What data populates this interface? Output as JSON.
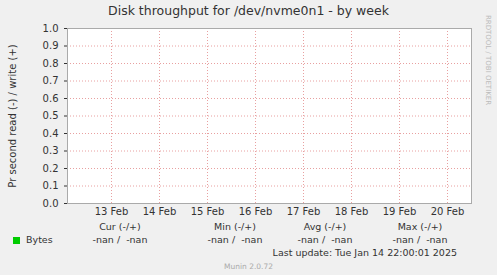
{
  "chart_data": {
    "type": "line",
    "title": "Disk throughput for /dev/nvme0n1 - by week",
    "y_label": "Pr second read (-) / write (+)",
    "categories": [
      "13 Feb",
      "14 Feb",
      "15 Feb",
      "16 Feb",
      "17 Feb",
      "18 Feb",
      "19 Feb",
      "20 Feb"
    ],
    "series": [
      {
        "name": "Bytes",
        "color": "#00cc00",
        "values": [
          null,
          null,
          null,
          null,
          null,
          null,
          null,
          null
        ]
      }
    ],
    "ylim": [
      0,
      1
    ],
    "yticks": [
      {
        "value": 0,
        "label": "0.0"
      },
      {
        "value": 0.1,
        "label": "0.1"
      },
      {
        "value": 0.2,
        "label": "0.2"
      },
      {
        "value": 0.3,
        "label": "0.3"
      },
      {
        "value": 0.4,
        "label": "0.4"
      },
      {
        "value": 0.5,
        "label": "0.5"
      },
      {
        "value": 0.6,
        "label": "0.6"
      },
      {
        "value": 0.7,
        "label": "0.7"
      },
      {
        "value": 0.8,
        "label": "0.8"
      },
      {
        "value": 0.9,
        "label": "0.9"
      },
      {
        "value": 1,
        "label": "1.0"
      }
    ],
    "grid": true,
    "legend_table": {
      "columns": [
        "Cur (-/+)",
        "Min (-/+)",
        "Avg (-/+)",
        "Max (-/+)"
      ],
      "rows": [
        {
          "name": "Bytes",
          "values": [
            "-nan /  -nan",
            "-nan /  -nan",
            "-nan /  -nan",
            "-nan /  -nan"
          ]
        }
      ]
    },
    "last_update": "Last update: Tue Jan 14 22:00:01 2025",
    "footer": "Munin 2.0.72",
    "watermark": "RRDTOOL / TOBI OETIKER"
  }
}
